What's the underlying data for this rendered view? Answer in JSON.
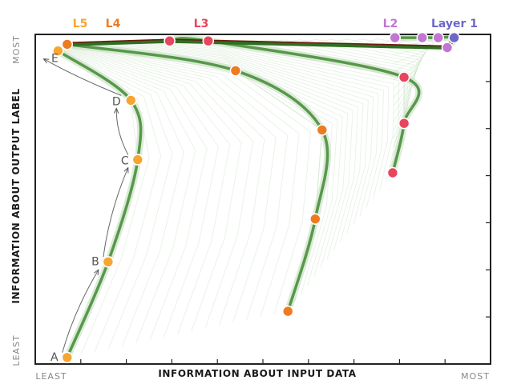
{
  "chart_data": {
    "type": "line",
    "xlabel": "INFORMATION ABOUT INPUT DATA",
    "ylabel": "INFORMATION ABOUT OUTPUT LABEL",
    "x_axis_ends": {
      "min_label": "LEAST",
      "max_label": "MOST"
    },
    "y_axis_ends": {
      "min_label": "LEAST",
      "max_label": "MOST"
    },
    "xlim": [
      0,
      1
    ],
    "ylim": [
      0,
      1
    ],
    "grid": false,
    "legend": "top",
    "series": [
      {
        "name": "L5",
        "color": "#f7a531",
        "x": [
          0.07,
          0.16,
          0.225,
          0.21,
          0.05
        ],
        "y": [
          0.02,
          0.31,
          0.62,
          0.8,
          0.95
        ]
      },
      {
        "name": "L4",
        "color": "#ee7b22",
        "x": [
          0.555,
          0.615,
          0.63,
          0.44,
          0.07
        ],
        "y": [
          0.16,
          0.44,
          0.71,
          0.89,
          0.97
        ]
      },
      {
        "name": "L3",
        "color": "#e8455c",
        "x": [
          0.785,
          0.81,
          0.81,
          0.38,
          0.295
        ],
        "y": [
          0.58,
          0.73,
          0.87,
          0.98,
          0.98
        ]
      },
      {
        "name": "L2",
        "color": "#c375d3",
        "x": [
          0.79,
          0.85,
          0.885,
          0.92,
          0.905
        ],
        "y": [
          0.99,
          0.99,
          0.99,
          0.99,
          0.96
        ]
      },
      {
        "name": "Layer 1",
        "color": "#6b68c8",
        "x": [
          0.92
        ],
        "y": [
          0.99
        ]
      }
    ],
    "annotations": [
      {
        "label": "A",
        "x": 0.07,
        "y": 0.02
      },
      {
        "label": "B",
        "x": 0.16,
        "y": 0.31
      },
      {
        "label": "C",
        "x": 0.225,
        "y": 0.62
      },
      {
        "label": "D",
        "x": 0.21,
        "y": 0.8
      },
      {
        "label": "E",
        "x": 0.05,
        "y": 0.95
      }
    ]
  }
}
